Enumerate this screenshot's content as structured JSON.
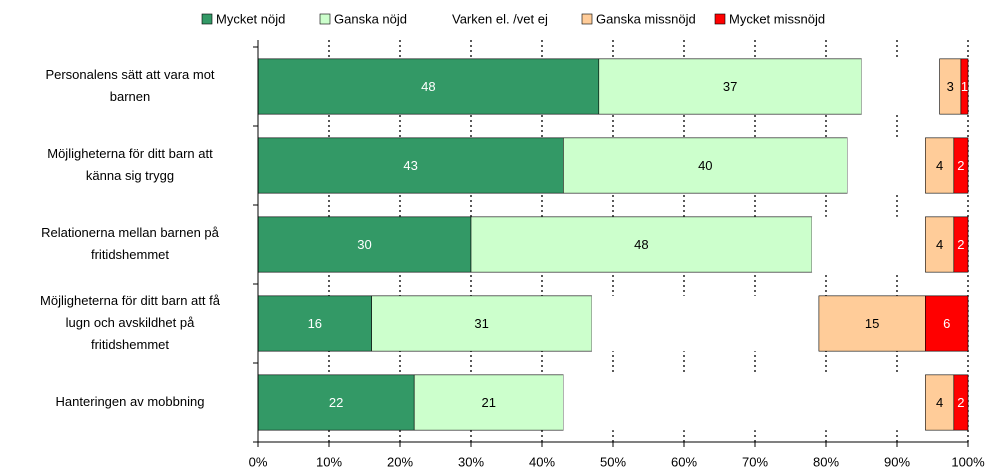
{
  "chart_data": {
    "type": "stacked-barh",
    "categories": [
      [
        "Personalens sätt att vara mot",
        "barnen"
      ],
      [
        "Möjligheterna för ditt barn att",
        "känna sig trygg"
      ],
      [
        "Relationerna mellan barnen på",
        "fritidshemmet"
      ],
      [
        "Möjligheterna för ditt barn att få",
        "lugn och avskildhet på",
        "fritidshemmet"
      ],
      [
        "Hanteringen av mobbning"
      ]
    ],
    "series": [
      {
        "name": "Mycket nöjd",
        "color": "#339966",
        "label_color": "#ffffff",
        "values": [
          48,
          43,
          30,
          16,
          22
        ]
      },
      {
        "name": "Ganska nöjd",
        "color": "#ccffcc",
        "label_color": "#000000",
        "values": [
          37,
          40,
          48,
          31,
          21
        ]
      },
      {
        "name": "Varken el. /vet ej",
        "color": "#ffffff",
        "values": [
          11,
          11,
          16,
          32,
          51
        ]
      },
      {
        "name": "Ganska missnöjd",
        "color": "#ffcc99",
        "label_color": "#000000",
        "values": [
          3,
          4,
          4,
          15,
          4
        ]
      },
      {
        "name": "Mycket missnöjd",
        "color": "#ff0000",
        "label_color": "#ffffff",
        "values": [
          1,
          2,
          2,
          6,
          2
        ]
      }
    ],
    "xlim": [
      0,
      100
    ],
    "xticks": [
      {
        "value": 0,
        "label": "0%"
      },
      {
        "value": 10,
        "label": "10%"
      },
      {
        "value": 20,
        "label": "20%"
      },
      {
        "value": 30,
        "label": "30%"
      },
      {
        "value": 40,
        "label": "40%"
      },
      {
        "value": 50,
        "label": "50%"
      },
      {
        "value": 60,
        "label": "60%"
      },
      {
        "value": 70,
        "label": "70%"
      },
      {
        "value": 80,
        "label": "80%"
      },
      {
        "value": 90,
        "label": "90%"
      },
      {
        "value": 100,
        "label": "100%"
      }
    ],
    "grid": true,
    "legend": "top"
  }
}
